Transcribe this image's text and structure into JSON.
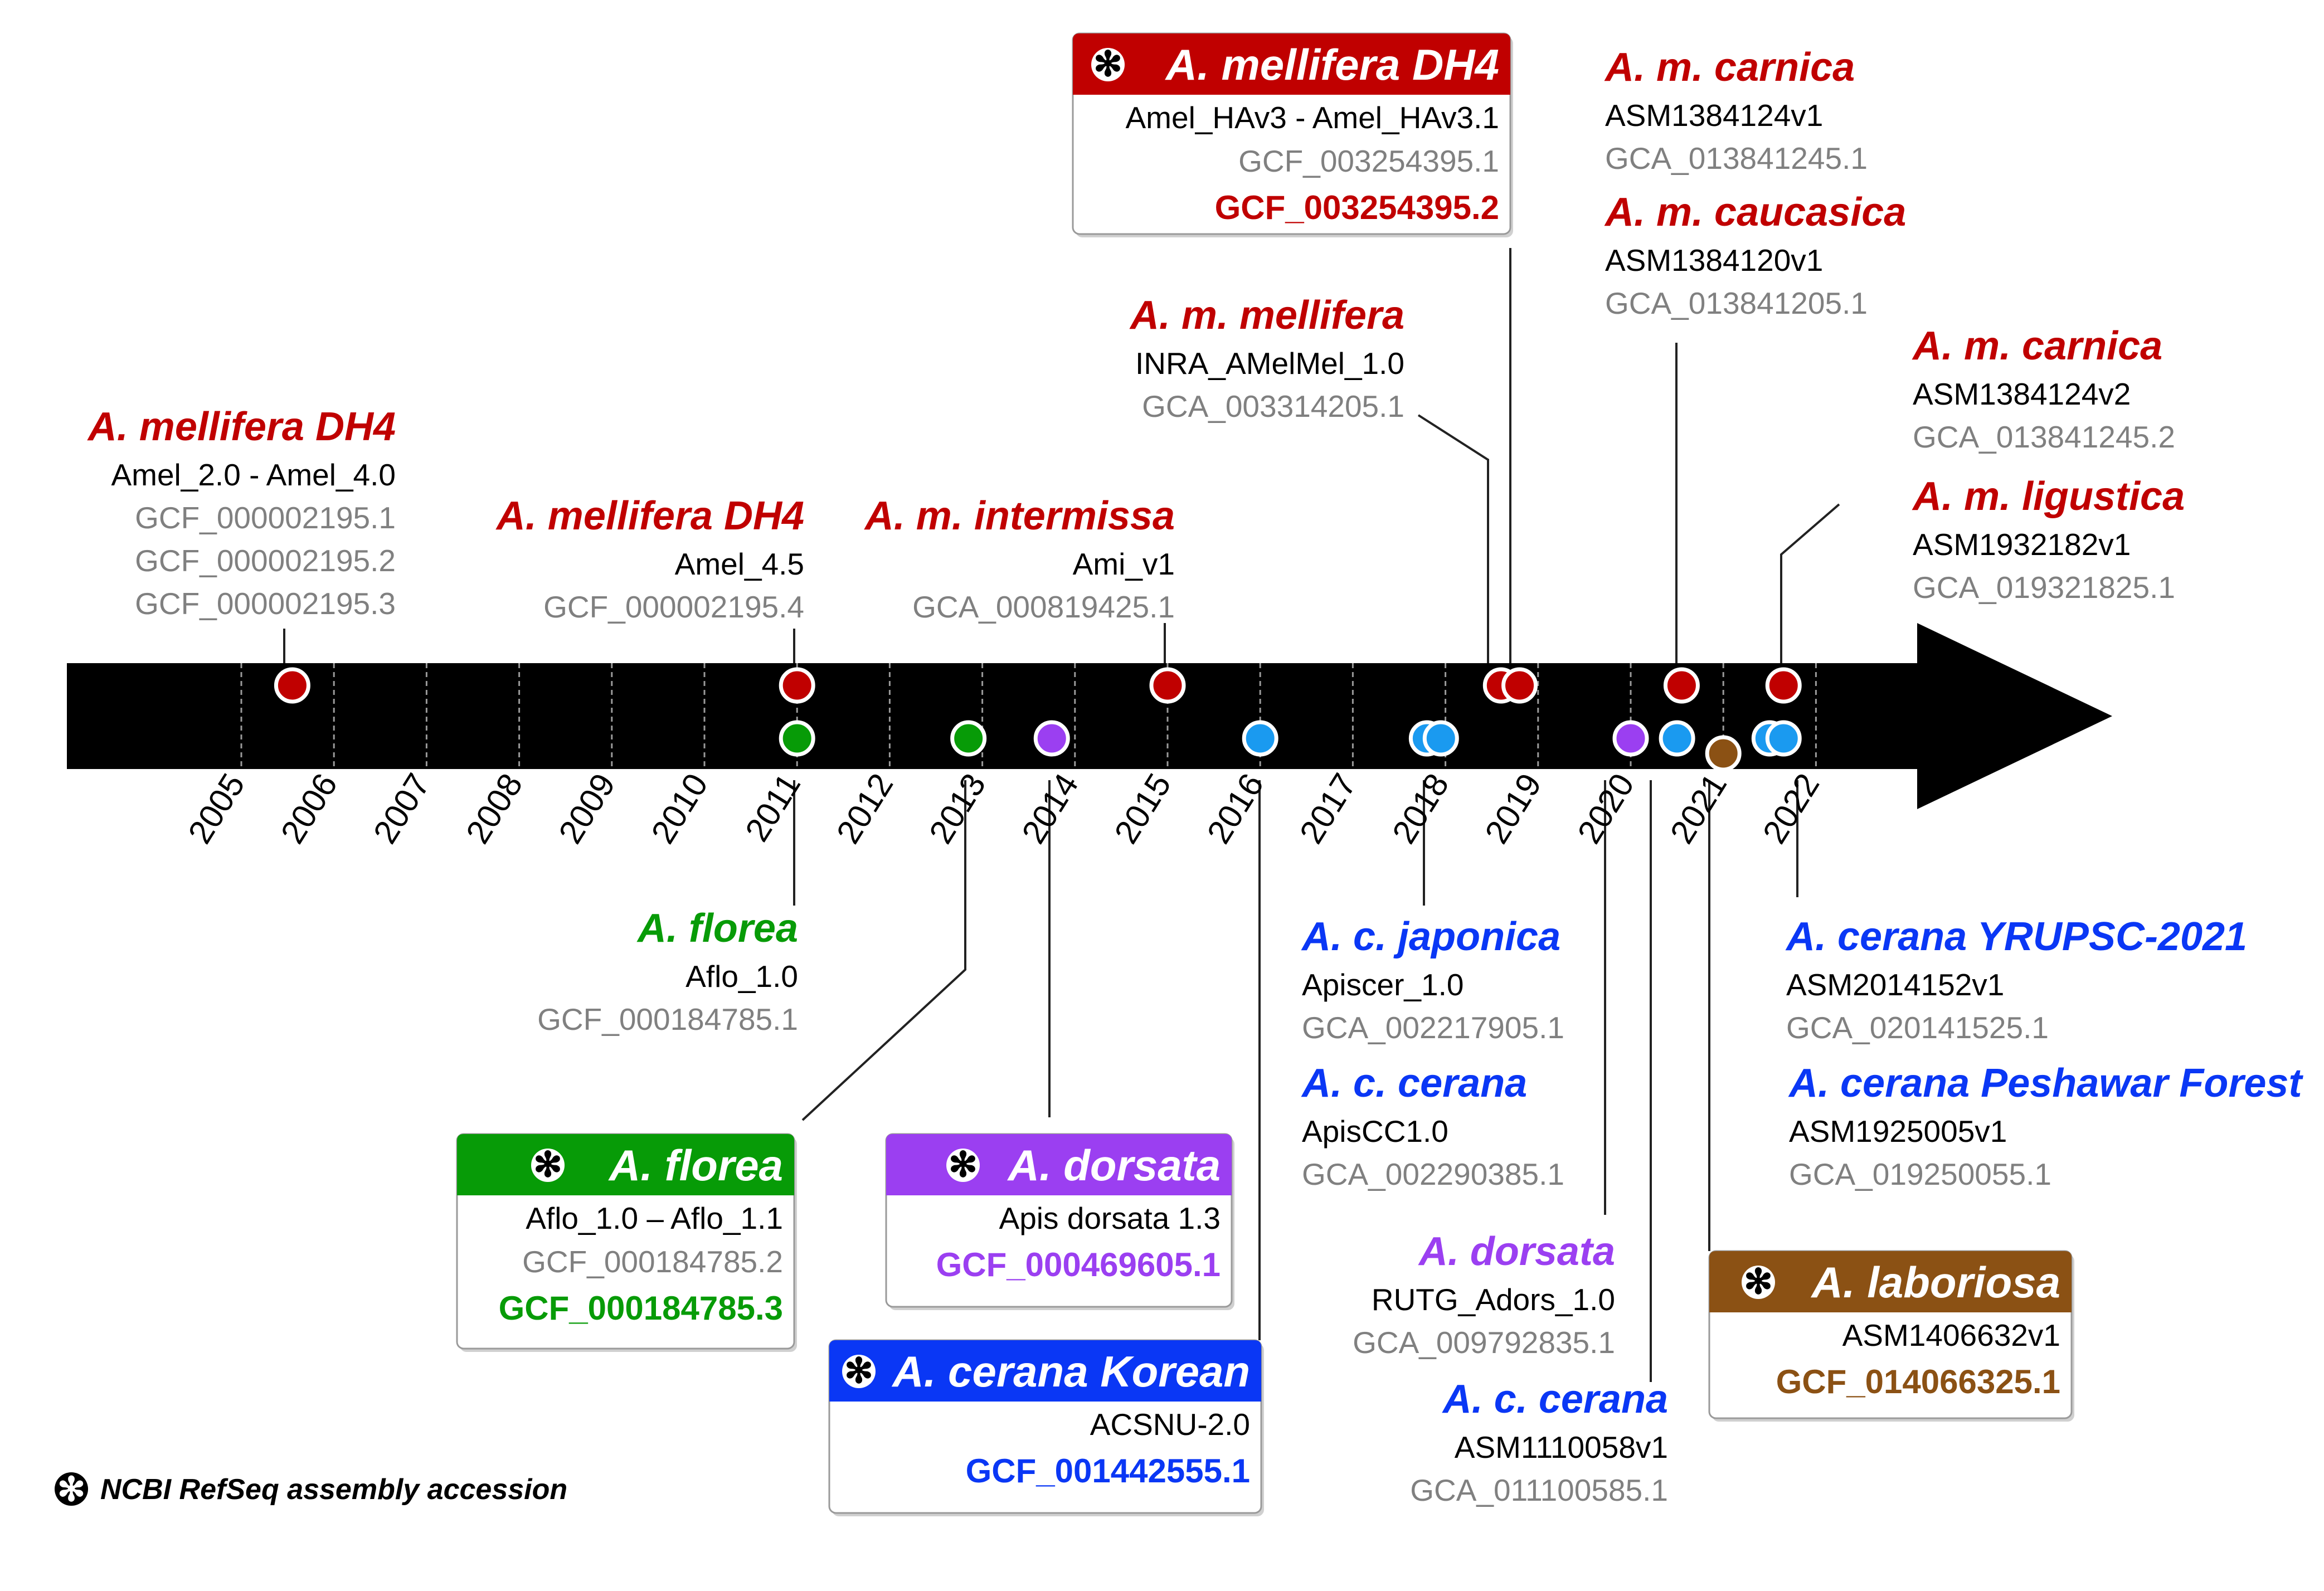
{
  "colors": {
    "mellifera": "#c00000",
    "florea": "#079b07",
    "dorsata": "#9b3ff1",
    "cerana": "#0a37f5",
    "cerana_dot": "#1a9af0",
    "laboriosa": "#8b5114",
    "accession_gray": "#808080",
    "text": "#000000",
    "timeline": "#000000"
  },
  "years": [
    "2005",
    "2006",
    "2007",
    "2008",
    "2009",
    "2010",
    "2011",
    "2012",
    "2013",
    "2014",
    "2015",
    "2016",
    "2017",
    "2018",
    "2019",
    "2020",
    "2021",
    "2022"
  ],
  "legend": {
    "symbol": "✻",
    "text": "NCBI RefSeq assembly accession"
  },
  "dots": [
    {
      "group": "mellifera",
      "year": 2005.55,
      "row": "upper"
    },
    {
      "group": "mellifera",
      "year": 2011.0,
      "row": "upper"
    },
    {
      "group": "mellifera",
      "year": 2015.0,
      "row": "upper"
    },
    {
      "group": "mellifera",
      "year": 2018.6,
      "row": "upper"
    },
    {
      "group": "mellifera",
      "year": 2018.8,
      "row": "upper"
    },
    {
      "group": "mellifera",
      "year": 2020.55,
      "row": "upper"
    },
    {
      "group": "mellifera",
      "year": 2021.65,
      "row": "upper"
    },
    {
      "group": "florea",
      "year": 2011.0,
      "row": "lower"
    },
    {
      "group": "florea",
      "year": 2012.85,
      "row": "lower"
    },
    {
      "group": "dorsata",
      "year": 2013.75,
      "row": "lower"
    },
    {
      "group": "dorsata",
      "year": 2020.0,
      "row": "lower"
    },
    {
      "group": "cerana_dot",
      "year": 2016.0,
      "row": "lower"
    },
    {
      "group": "cerana_dot",
      "year": 2017.8,
      "row": "lower"
    },
    {
      "group": "cerana_dot",
      "year": 2017.95,
      "row": "lower"
    },
    {
      "group": "cerana_dot",
      "year": 2020.5,
      "row": "lower"
    },
    {
      "group": "cerana_dot",
      "year": 2021.5,
      "row": "lower"
    },
    {
      "group": "cerana_dot",
      "year": 2021.65,
      "row": "lower"
    },
    {
      "group": "laboriosa",
      "year": 2021.0,
      "row": "lowest"
    }
  ],
  "labels": [
    {
      "id": "dh4-2006",
      "group": "mellifera",
      "name": "A. mellifera DH4",
      "assembly": "Amel_2.0 - Amel_4.0",
      "accessions": [
        "GCF_000002195.1",
        "GCF_000002195.2",
        "GCF_000002195.3"
      ]
    },
    {
      "id": "dh4-2011",
      "group": "mellifera",
      "name": "A. mellifera DH4",
      "assembly": "Amel_4.5",
      "accessions": [
        "GCF_000002195.4"
      ]
    },
    {
      "id": "intermissa",
      "group": "mellifera",
      "name": "A. m. intermissa",
      "assembly": "Ami_v1",
      "accessions": [
        "GCA_000819425.1"
      ]
    },
    {
      "id": "mellifera-mel",
      "group": "mellifera",
      "name": "A. m. mellifera",
      "assembly": "INRA_AMelMel_1.0",
      "accessions": [
        "GCA_003314205.1"
      ]
    },
    {
      "id": "carnica-1",
      "group": "mellifera",
      "name": "A. m. carnica",
      "assembly": "ASM1384124v1",
      "accessions": [
        "GCA_013841245.1"
      ]
    },
    {
      "id": "caucasica",
      "group": "mellifera",
      "name": "A. m. caucasica",
      "assembly": "ASM1384120v1",
      "accessions": [
        "GCA_013841205.1"
      ]
    },
    {
      "id": "carnica-2",
      "group": "mellifera",
      "name": "A. m. carnica",
      "assembly": "ASM1384124v2",
      "accessions": [
        "GCA_013841245.2"
      ]
    },
    {
      "id": "ligustica",
      "group": "mellifera",
      "name": "A. m. ligustica",
      "assembly": "ASM1932182v1",
      "accessions": [
        "GCA_019321825.1"
      ]
    },
    {
      "id": "florea-2011",
      "group": "florea",
      "name": "A. florea",
      "assembly": "Aflo_1.0",
      "accessions": [
        "GCF_000184785.1"
      ]
    },
    {
      "id": "japonica",
      "group": "cerana",
      "name": "A. c. japonica",
      "assembly": "Apiscer_1.0",
      "accessions": [
        "GCA_002217905.1"
      ]
    },
    {
      "id": "cc-2018",
      "group": "cerana",
      "name": "A. c. cerana",
      "assembly": "ApisCC1.0",
      "accessions": [
        "GCA_002290385.1"
      ]
    },
    {
      "id": "dorsata-2020",
      "group": "dorsata",
      "name": "A. dorsata",
      "assembly": "RUTG_Adors_1.0",
      "accessions": [
        "GCA_009792835.1"
      ]
    },
    {
      "id": "cc-2020",
      "group": "cerana",
      "name": "A. c. cerana",
      "assembly": "ASM1110058v1",
      "accessions": [
        "GCA_011100585.1"
      ]
    },
    {
      "id": "yrupsc",
      "group": "cerana",
      "name": "A. cerana YRUPSC-2021",
      "assembly": "ASM2014152v1",
      "accessions": [
        "GCA_020141525.1"
      ]
    },
    {
      "id": "peshawar",
      "group": "cerana",
      "name": "A. cerana Peshawar Forest",
      "assembly": "ASM1925005v1",
      "accessions": [
        "GCA_019250055.1"
      ]
    }
  ],
  "boxes": [
    {
      "id": "box-dh4",
      "group": "mellifera",
      "name": "A. mellifera DH4",
      "assembly": "Amel_HAv3 - Amel_HAv3.1",
      "accessions": [
        "GCF_003254395.1"
      ],
      "refseq": "GCF_003254395.2"
    },
    {
      "id": "box-florea",
      "group": "florea",
      "name": "A. florea",
      "assembly": "Aflo_1.0 – Aflo_1.1",
      "accessions": [
        "GCF_000184785.2"
      ],
      "refseq": "GCF_000184785.3"
    },
    {
      "id": "box-dorsata",
      "group": "dorsata",
      "name": "A. dorsata",
      "assembly": "Apis dorsata 1.3",
      "accessions": [],
      "refseq": "GCF_000469605.1"
    },
    {
      "id": "box-korean",
      "group": "cerana",
      "name": "A. cerana Korean",
      "assembly": "ACSNU-2.0",
      "accessions": [],
      "refseq": "GCF_001442555.1"
    },
    {
      "id": "box-laboriosa",
      "group": "laboriosa",
      "name": "A. laboriosa",
      "assembly": "ASM1406632v1",
      "accessions": [],
      "refseq": "GCF_014066325.1"
    }
  ]
}
